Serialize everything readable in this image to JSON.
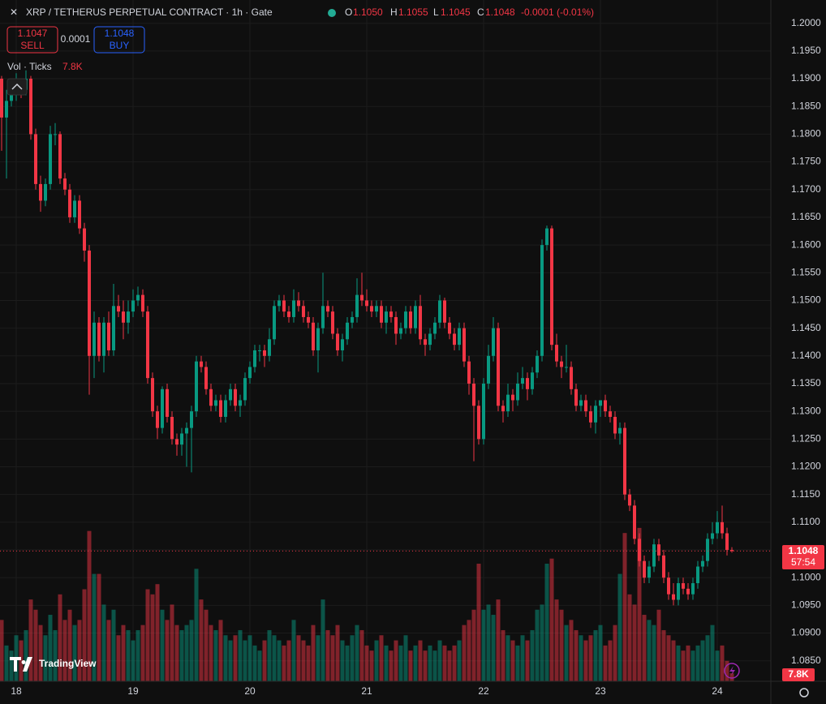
{
  "header": {
    "title": "XRP / TETHERUS PERPETUAL CONTRACT · 1h · Gate",
    "o_label": "O",
    "o": "1.1050",
    "h_label": "H",
    "h": "1.1055",
    "l_label": "L",
    "l": "1.1045",
    "c_label": "C",
    "c": "1.1048",
    "change": "-0.0001 (-0.01%)",
    "sell_price": "1.1047",
    "sell": "SELL",
    "spread": "0.0001",
    "buy_price": "1.1048",
    "buy": "BUY",
    "vol_name": "Vol · Ticks",
    "vol_value": "7.8K",
    "price_tag": "1.1048",
    "countdown": "57:54",
    "vol_tag": "7.8K",
    "logo": "TradingView"
  },
  "chart_data": {
    "type": "candlestick",
    "up_color": "#089981",
    "down_color": "#f23645",
    "grid": true,
    "ylim": [
      1.0813,
      1.2042
    ],
    "yticks": [
      {
        "value": 1.2,
        "label": "1.2000"
      },
      {
        "value": 1.195,
        "label": "1.1950"
      },
      {
        "value": 1.19,
        "label": "1.1900"
      },
      {
        "value": 1.185,
        "label": "1.1850"
      },
      {
        "value": 1.18,
        "label": "1.1800"
      },
      {
        "value": 1.175,
        "label": "1.1750"
      },
      {
        "value": 1.17,
        "label": "1.1700"
      },
      {
        "value": 1.165,
        "label": "1.1650"
      },
      {
        "value": 1.16,
        "label": "1.1600"
      },
      {
        "value": 1.155,
        "label": "1.1550"
      },
      {
        "value": 1.15,
        "label": "1.1500"
      },
      {
        "value": 1.145,
        "label": "1.1450"
      },
      {
        "value": 1.14,
        "label": "1.1400"
      },
      {
        "value": 1.135,
        "label": "1.1350"
      },
      {
        "value": 1.13,
        "label": "1.1300"
      },
      {
        "value": 1.125,
        "label": "1.1250"
      },
      {
        "value": 1.12,
        "label": "1.1200"
      },
      {
        "value": 1.115,
        "label": "1.1150"
      },
      {
        "value": 1.11,
        "label": "1.1100"
      },
      {
        "value": 1.105,
        "label": "1.1050"
      },
      {
        "value": 1.1,
        "label": "1.1000"
      },
      {
        "value": 1.095,
        "label": "1.0950"
      },
      {
        "value": 1.09,
        "label": "1.0900"
      },
      {
        "value": 1.085,
        "label": "1.0850"
      }
    ],
    "volume_ylim": [
      0,
      230000
    ],
    "categories": [
      null,
      null,
      null,
      "18",
      null,
      null,
      null,
      null,
      null,
      null,
      null,
      null,
      null,
      null,
      null,
      null,
      null,
      null,
      null,
      null,
      null,
      null,
      null,
      null,
      null,
      null,
      null,
      "19",
      null,
      null,
      null,
      null,
      null,
      null,
      null,
      null,
      null,
      null,
      null,
      null,
      null,
      null,
      null,
      null,
      null,
      null,
      null,
      null,
      null,
      null,
      null,
      "20",
      null,
      null,
      null,
      null,
      null,
      null,
      null,
      null,
      null,
      null,
      null,
      null,
      null,
      null,
      null,
      null,
      null,
      null,
      null,
      null,
      null,
      null,
      null,
      "21",
      null,
      null,
      null,
      null,
      null,
      null,
      null,
      null,
      null,
      null,
      null,
      null,
      null,
      null,
      null,
      null,
      null,
      null,
      null,
      null,
      null,
      null,
      null,
      "22",
      null,
      null,
      null,
      null,
      null,
      null,
      null,
      null,
      null,
      null,
      null,
      null,
      null,
      null,
      null,
      null,
      null,
      null,
      null,
      null,
      null,
      null,
      null,
      "23",
      null,
      null,
      null,
      null,
      null,
      null,
      null,
      null,
      null,
      null,
      null,
      null,
      null,
      null,
      null,
      null,
      null,
      null,
      null,
      null,
      null,
      null,
      null,
      "24",
      null,
      null,
      null
    ],
    "ohlc": [
      [
        1.19,
        1.1905,
        1.177,
        1.183
      ],
      [
        1.183,
        1.188,
        1.172,
        1.186
      ],
      [
        1.186,
        1.19,
        1.185,
        1.188
      ],
      [
        1.188,
        1.191,
        1.186,
        1.189
      ],
      [
        1.189,
        1.19,
        1.1865,
        1.188
      ],
      [
        1.188,
        1.1915,
        1.187,
        1.19
      ],
      [
        1.19,
        1.1905,
        1.179,
        1.18
      ],
      [
        1.18,
        1.181,
        1.17,
        1.171
      ],
      [
        1.171,
        1.1725,
        1.166,
        1.168
      ],
      [
        1.168,
        1.172,
        1.167,
        1.171
      ],
      [
        1.171,
        1.1815,
        1.17,
        1.18
      ],
      [
        1.18,
        1.182,
        1.178,
        1.18
      ],
      [
        1.18,
        1.1805,
        1.171,
        1.172
      ],
      [
        1.172,
        1.173,
        1.169,
        1.17
      ],
      [
        1.17,
        1.171,
        1.164,
        1.165
      ],
      [
        1.165,
        1.169,
        1.164,
        1.168
      ],
      [
        1.168,
        1.169,
        1.162,
        1.163
      ],
      [
        1.163,
        1.164,
        1.157,
        1.159
      ],
      [
        1.159,
        1.16,
        1.133,
        1.14
      ],
      [
        1.14,
        1.148,
        1.136,
        1.146
      ],
      [
        1.146,
        1.147,
        1.139,
        1.14
      ],
      [
        1.14,
        1.147,
        1.137,
        1.146
      ],
      [
        1.146,
        1.148,
        1.14,
        1.141
      ],
      [
        1.141,
        1.153,
        1.14,
        1.149
      ],
      [
        1.149,
        1.151,
        1.147,
        1.148
      ],
      [
        1.148,
        1.15,
        1.143,
        1.146
      ],
      [
        1.146,
        1.15,
        1.144,
        1.148
      ],
      [
        1.148,
        1.152,
        1.147,
        1.15
      ],
      [
        1.15,
        1.1525,
        1.149,
        1.151
      ],
      [
        1.151,
        1.152,
        1.147,
        1.148
      ],
      [
        1.148,
        1.149,
        1.135,
        1.136
      ],
      [
        1.136,
        1.137,
        1.129,
        1.13
      ],
      [
        1.13,
        1.131,
        1.125,
        1.127
      ],
      [
        1.127,
        1.1345,
        1.126,
        1.134
      ],
      [
        1.134,
        1.135,
        1.128,
        1.129
      ],
      [
        1.129,
        1.13,
        1.124,
        1.125
      ],
      [
        1.125,
        1.126,
        1.122,
        1.124
      ],
      [
        1.124,
        1.127,
        1.122,
        1.126
      ],
      [
        1.126,
        1.128,
        1.12,
        1.127
      ],
      [
        1.127,
        1.131,
        1.119,
        1.13
      ],
      [
        1.13,
        1.14,
        1.129,
        1.139
      ],
      [
        1.139,
        1.14,
        1.137,
        1.138
      ],
      [
        1.138,
        1.139,
        1.133,
        1.134
      ],
      [
        1.134,
        1.135,
        1.13,
        1.131
      ],
      [
        1.131,
        1.133,
        1.13,
        1.132
      ],
      [
        1.132,
        1.133,
        1.128,
        1.129
      ],
      [
        1.129,
        1.133,
        1.128,
        1.132
      ],
      [
        1.132,
        1.135,
        1.131,
        1.134
      ],
      [
        1.134,
        1.135,
        1.13,
        1.131
      ],
      [
        1.131,
        1.133,
        1.129,
        1.132
      ],
      [
        1.132,
        1.137,
        1.131,
        1.136
      ],
      [
        1.136,
        1.139,
        1.135,
        1.138
      ],
      [
        1.138,
        1.142,
        1.137,
        1.141
      ],
      [
        1.141,
        1.142,
        1.139,
        1.141
      ],
      [
        1.141,
        1.142,
        1.138,
        1.14
      ],
      [
        1.14,
        1.145,
        1.139,
        1.143
      ],
      [
        1.143,
        1.15,
        1.142,
        1.149
      ],
      [
        1.149,
        1.151,
        1.148,
        1.15
      ],
      [
        1.15,
        1.151,
        1.147,
        1.148
      ],
      [
        1.148,
        1.149,
        1.146,
        1.147
      ],
      [
        1.147,
        1.152,
        1.146,
        1.15
      ],
      [
        1.15,
        1.1515,
        1.148,
        1.149
      ],
      [
        1.149,
        1.15,
        1.146,
        1.147
      ],
      [
        1.147,
        1.148,
        1.145,
        1.146
      ],
      [
        1.146,
        1.147,
        1.14,
        1.141
      ],
      [
        1.141,
        1.146,
        1.137,
        1.145
      ],
      [
        1.145,
        1.155,
        1.144,
        1.149
      ],
      [
        1.149,
        1.15,
        1.147,
        1.148
      ],
      [
        1.148,
        1.149,
        1.143,
        1.144
      ],
      [
        1.144,
        1.145,
        1.14,
        1.141
      ],
      [
        1.141,
        1.144,
        1.139,
        1.143
      ],
      [
        1.143,
        1.147,
        1.142,
        1.146
      ],
      [
        1.146,
        1.148,
        1.145,
        1.147
      ],
      [
        1.147,
        1.154,
        1.146,
        1.151
      ],
      [
        1.151,
        1.155,
        1.149,
        1.15
      ],
      [
        1.15,
        1.152,
        1.148,
        1.149
      ],
      [
        1.149,
        1.15,
        1.147,
        1.148
      ],
      [
        1.148,
        1.15,
        1.147,
        1.149
      ],
      [
        1.149,
        1.15,
        1.145,
        1.146
      ],
      [
        1.146,
        1.149,
        1.144,
        1.148
      ],
      [
        1.148,
        1.149,
        1.146,
        1.147
      ],
      [
        1.147,
        1.148,
        1.142,
        1.144
      ],
      [
        1.144,
        1.146,
        1.143,
        1.145
      ],
      [
        1.145,
        1.149,
        1.144,
        1.148
      ],
      [
        1.148,
        1.149,
        1.144,
        1.145
      ],
      [
        1.145,
        1.15,
        1.144,
        1.149
      ],
      [
        1.149,
        1.151,
        1.142,
        1.143
      ],
      [
        1.143,
        1.144,
        1.14,
        1.142
      ],
      [
        1.142,
        1.145,
        1.141,
        1.144
      ],
      [
        1.144,
        1.147,
        1.143,
        1.146
      ],
      [
        1.146,
        1.151,
        1.145,
        1.15
      ],
      [
        1.15,
        1.1505,
        1.145,
        1.146
      ],
      [
        1.146,
        1.147,
        1.143,
        1.144
      ],
      [
        1.144,
        1.145,
        1.141,
        1.142
      ],
      [
        1.142,
        1.146,
        1.141,
        1.145
      ],
      [
        1.145,
        1.146,
        1.138,
        1.139
      ],
      [
        1.139,
        1.14,
        1.133,
        1.135
      ],
      [
        1.135,
        1.136,
        1.121,
        1.131
      ],
      [
        1.131,
        1.132,
        1.124,
        1.125
      ],
      [
        1.125,
        1.136,
        1.124,
        1.135
      ],
      [
        1.135,
        1.142,
        1.134,
        1.14
      ],
      [
        1.14,
        1.147,
        1.139,
        1.145
      ],
      [
        1.145,
        1.146,
        1.13,
        1.131
      ],
      [
        1.131,
        1.132,
        1.128,
        1.13
      ],
      [
        1.13,
        1.135,
        1.129,
        1.133
      ],
      [
        1.133,
        1.134,
        1.13,
        1.132
      ],
      [
        1.132,
        1.137,
        1.131,
        1.135
      ],
      [
        1.135,
        1.138,
        1.134,
        1.136
      ],
      [
        1.136,
        1.137,
        1.132,
        1.134
      ],
      [
        1.134,
        1.138,
        1.133,
        1.137
      ],
      [
        1.137,
        1.141,
        1.136,
        1.14
      ],
      [
        1.14,
        1.161,
        1.139,
        1.16
      ],
      [
        1.16,
        1.1635,
        1.159,
        1.163
      ],
      [
        1.163,
        1.1635,
        1.141,
        1.142
      ],
      [
        1.142,
        1.144,
        1.138,
        1.139
      ],
      [
        1.139,
        1.14,
        1.136,
        1.138
      ],
      [
        1.138,
        1.142,
        1.137,
        1.138
      ],
      [
        1.138,
        1.139,
        1.133,
        1.134
      ],
      [
        1.134,
        1.135,
        1.13,
        1.131
      ],
      [
        1.131,
        1.133,
        1.13,
        1.132
      ],
      [
        1.132,
        1.133,
        1.129,
        1.13
      ],
      [
        1.13,
        1.131,
        1.127,
        1.128
      ],
      [
        1.128,
        1.132,
        1.126,
        1.131
      ],
      [
        1.131,
        1.132,
        1.129,
        1.132
      ],
      [
        1.132,
        1.133,
        1.129,
        1.13
      ],
      [
        1.13,
        1.131,
        1.128,
        1.129
      ],
      [
        1.129,
        1.13,
        1.125,
        1.126
      ],
      [
        1.126,
        1.128,
        1.124,
        1.127
      ],
      [
        1.127,
        1.128,
        1.114,
        1.115
      ],
      [
        1.115,
        1.116,
        1.112,
        1.113
      ],
      [
        1.113,
        1.114,
        1.106,
        1.107
      ],
      [
        1.107,
        1.108,
        1.102,
        1.103
      ],
      [
        1.103,
        1.104,
        1.099,
        1.1
      ],
      [
        1.1,
        1.103,
        1.099,
        1.102
      ],
      [
        1.102,
        1.107,
        1.101,
        1.106
      ],
      [
        1.106,
        1.107,
        1.103,
        1.104
      ],
      [
        1.104,
        1.105,
        1.099,
        1.1
      ],
      [
        1.1,
        1.101,
        1.096,
        1.097
      ],
      [
        1.097,
        1.099,
        1.095,
        1.096
      ],
      [
        1.096,
        1.1,
        1.095,
        1.099
      ],
      [
        1.099,
        1.1,
        1.097,
        1.098
      ],
      [
        1.098,
        1.099,
        1.096,
        1.097
      ],
      [
        1.097,
        1.1,
        1.096,
        1.099
      ],
      [
        1.099,
        1.103,
        1.098,
        1.102
      ],
      [
        1.102,
        1.104,
        1.101,
        1.103
      ],
      [
        1.103,
        1.108,
        1.102,
        1.107
      ],
      [
        1.107,
        1.11,
        1.106,
        1.108
      ],
      [
        1.108,
        1.112,
        1.107,
        1.11
      ],
      [
        1.11,
        1.113,
        1.107,
        1.108
      ],
      [
        1.108,
        1.109,
        1.104,
        1.105
      ],
      [
        1.105,
        1.1055,
        1.1045,
        1.1048
      ]
    ],
    "volume": [
      60000,
      35000,
      30000,
      45000,
      40000,
      50000,
      80000,
      70000,
      55000,
      45000,
      65000,
      50000,
      85000,
      60000,
      70000,
      55000,
      60000,
      90000,
      147000,
      105000,
      105000,
      75000,
      60000,
      70000,
      45000,
      55000,
      50000,
      40000,
      50000,
      55000,
      90000,
      85000,
      95000,
      70000,
      60000,
      75000,
      55000,
      50000,
      55000,
      60000,
      110000,
      80000,
      70000,
      55000,
      50000,
      60000,
      45000,
      40000,
      45000,
      50000,
      40000,
      45000,
      35000,
      30000,
      40000,
      50000,
      45000,
      40000,
      35000,
      40000,
      60000,
      45000,
      40000,
      35000,
      55000,
      45000,
      80000,
      50000,
      45000,
      55000,
      40000,
      35000,
      45000,
      55000,
      50000,
      35000,
      30000,
      40000,
      45000,
      35000,
      30000,
      40000,
      35000,
      45000,
      30000,
      35000,
      40000,
      30000,
      35000,
      30000,
      40000,
      35000,
      30000,
      35000,
      40000,
      55000,
      60000,
      70000,
      115000,
      70000,
      75000,
      65000,
      80000,
      50000,
      45000,
      40000,
      35000,
      45000,
      40000,
      50000,
      70000,
      75000,
      115000,
      120000,
      80000,
      70000,
      55000,
      60000,
      50000,
      45000,
      40000,
      45000,
      50000,
      55000,
      35000,
      40000,
      55000,
      105000,
      145000,
      85000,
      75000,
      150000,
      65000,
      60000,
      55000,
      70000,
      50000,
      45000,
      40000,
      35000,
      30000,
      35000,
      30000,
      35000,
      40000,
      45000,
      55000,
      30000,
      35000,
      20000,
      7800
    ]
  }
}
